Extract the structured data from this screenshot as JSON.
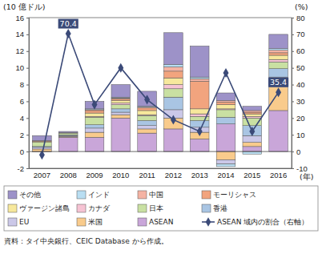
{
  "chart_data": {
    "type": "bar",
    "stacked": true,
    "y_label": "(10 億ドル)",
    "y2_label": "(%)",
    "x_label": "(年)",
    "source": "資料：タイ中央銀行、CEIC Database から作成。",
    "categories": [
      "2007",
      "2008",
      "2009",
      "2010",
      "2011",
      "2012",
      "2013",
      "2014",
      "2015",
      "2016"
    ],
    "ylim": [
      -2,
      16
    ],
    "yticks": [
      -2,
      0,
      2,
      4,
      6,
      8,
      10,
      12,
      14,
      16
    ],
    "y2lim": [
      -10,
      80
    ],
    "y2ticks": [
      -10,
      0,
      10,
      20,
      30,
      40,
      50,
      60,
      70,
      80
    ],
    "grid": false,
    "legend": "bottom",
    "series": [
      {
        "name": "その他",
        "color": "#9d92c8",
        "values": [
          0.6,
          0.15,
          0.9,
          1.5,
          1.8,
          3.8,
          3.7,
          0.9,
          0.5,
          1.7
        ]
      },
      {
        "name": "インド",
        "color": "#b9def2",
        "values": [
          0,
          0,
          0.1,
          0.1,
          0.1,
          0.3,
          0.2,
          -0.3,
          -0.3,
          0.2
        ]
      },
      {
        "name": "中国",
        "color": "#f5b3a3",
        "values": [
          0,
          0,
          0.1,
          0.1,
          0.1,
          0.5,
          0.3,
          0.2,
          0.2,
          0.3
        ]
      },
      {
        "name": "モーリシャス",
        "color": "#f2a47e",
        "values": [
          0.1,
          0,
          0.3,
          0.2,
          0.3,
          0.8,
          3.3,
          0.3,
          0.2,
          0.3
        ]
      },
      {
        "name": "ヴァージン諸島",
        "color": "#f7e89c",
        "values": [
          0.1,
          0.05,
          0.4,
          0.3,
          0.5,
          0.8,
          0.6,
          0.5,
          0.3,
          0.5
        ]
      },
      {
        "name": "カナダ",
        "color": "#f6c3d3",
        "values": [
          0,
          0,
          0.1,
          0.2,
          0.1,
          0.5,
          0.3,
          0.1,
          0.2,
          0.3
        ]
      },
      {
        "name": "日本",
        "color": "#c9e0a2",
        "values": [
          0.5,
          0.2,
          0.9,
          0.5,
          0.6,
          1.0,
          0.5,
          0.9,
          0.9,
          0.8
        ]
      },
      {
        "name": "香港",
        "color": "#a9c5e3",
        "values": [
          0.1,
          0.1,
          0.4,
          0.4,
          0.6,
          1.5,
          0.8,
          0.8,
          1.2,
          1.0
        ]
      },
      {
        "name": "EU",
        "color": "#cbc8e8",
        "values": [
          0.2,
          0.1,
          0.5,
          0.3,
          0.4,
          1.0,
          0.6,
          -0.5,
          0.8,
          1.2
        ]
      },
      {
        "name": "米国",
        "color": "#f9cb8c",
        "values": [
          0.3,
          0.1,
          0.6,
          0.4,
          0.5,
          1.3,
          0.8,
          -1.0,
          0.5,
          2.8
        ]
      },
      {
        "name": "ASEAN",
        "color": "#c9a6d9",
        "values": [
          -0.04,
          1.7,
          1.7,
          4.0,
          2.2,
          2.7,
          1.5,
          3.3,
          0.6,
          4.9
        ]
      },
      {
        "name": "ASEAN 域内の割合（右軸）",
        "type": "line",
        "axis": "y2",
        "color": "#3b4a78",
        "marker": "diamond",
        "values": [
          -2,
          70.4,
          28,
          50,
          31,
          19,
          12,
          47,
          12,
          35.4
        ],
        "value_labels": [
          null,
          "70.4",
          null,
          null,
          null,
          null,
          null,
          null,
          null,
          "35.4"
        ]
      }
    ]
  }
}
